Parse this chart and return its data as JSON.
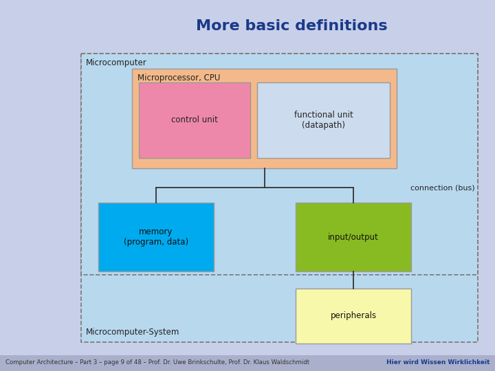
{
  "title": "More basic definitions",
  "title_fontsize": 16,
  "title_color": "#1a3a8a",
  "bg_color": "#c8cfe8",
  "inner_bg": "#b8d8ee",
  "cpu_box_color": "#f4b98a",
  "control_unit_color": "#ee88aa",
  "functional_unit_color": "#ccdcee",
  "memory_color": "#00aaee",
  "input_output_color": "#88bb22",
  "peripherals_color": "#f8f8aa",
  "footer_bg": "#aab0cc",
  "footer_text": "Computer Architecture – Part 3 – page 9 of 48 – Prof. Dr. Uwe Brinkschulte, Prof. Dr. Klaus Waldschmidt",
  "footer_right": "Hier wird Wissen Wirklichkeit",
  "microcomputer_label": "Microcomputer",
  "microcomputer_system_label": "Microcomputer-System",
  "cpu_label": "Microprocessor, CPU",
  "control_unit_label": "control unit",
  "functional_unit_label": "functional unit\n(datapath)",
  "memory_label": "memory\n(program, data)",
  "input_output_label": "input/output",
  "peripherals_label": "peripherals",
  "connection_bus_label": "connection (bus)"
}
